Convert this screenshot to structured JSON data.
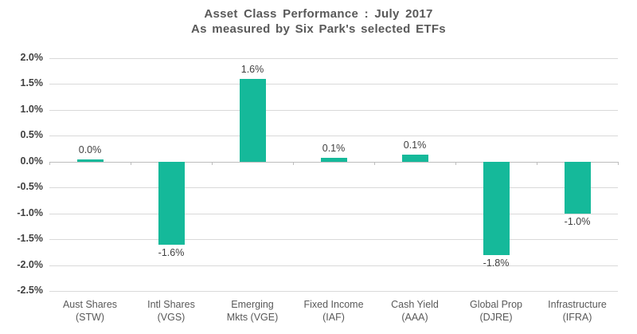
{
  "chart_data": {
    "type": "bar",
    "title": "Asset Class Performance : July 2017",
    "subtitle": "As measured by Six Park's selected ETFs",
    "categories": [
      "Aust Shares (STW)",
      "Intl Shares (VGS)",
      "Emerging Mkts (VGE)",
      "Fixed Income (IAF)",
      "Cash Yield (AAA)",
      "Global Prop (DJRE)",
      "Infrastructure (IFRA)"
    ],
    "category_lines": [
      [
        "Aust Shares",
        "(STW)"
      ],
      [
        "Intl Shares",
        "(VGS)"
      ],
      [
        "Emerging",
        "Mkts (VGE)"
      ],
      [
        "Fixed Income",
        "(IAF)"
      ],
      [
        "Cash Yield",
        "(AAA)"
      ],
      [
        "Global Prop",
        "(DJRE)"
      ],
      [
        "Infrastructure",
        "(IFRA)"
      ]
    ],
    "values": [
      0.0,
      -1.6,
      1.6,
      0.1,
      0.1,
      -1.8,
      -1.0
    ],
    "bar_pixel_values": [
      0.05,
      -1.6,
      1.6,
      0.08,
      0.13,
      -1.8,
      -1.0
    ],
    "data_labels": [
      "0.0%",
      "-1.6%",
      "1.6%",
      "0.1%",
      "0.1%",
      "-1.8%",
      "-1.0%"
    ],
    "yticks": [
      "2.0%",
      "1.5%",
      "1.0%",
      "0.5%",
      "0.0%",
      "-0.5%",
      "-1.0%",
      "-1.5%",
      "-2.0%",
      "-2.5%"
    ],
    "ytick_values": [
      2.0,
      1.5,
      1.0,
      0.5,
      0.0,
      -0.5,
      -1.0,
      -1.5,
      -2.0,
      -2.5
    ],
    "ylim": [
      -2.5,
      2.0
    ],
    "xlabel": "",
    "ylabel": "",
    "grid": "horizontal",
    "legend": "none",
    "bar_color": "#15b99a",
    "gridline_color": "#d9d9d9",
    "axis_color": "#bdbdbd",
    "title_color": "#595959",
    "label_color": "#404040"
  }
}
